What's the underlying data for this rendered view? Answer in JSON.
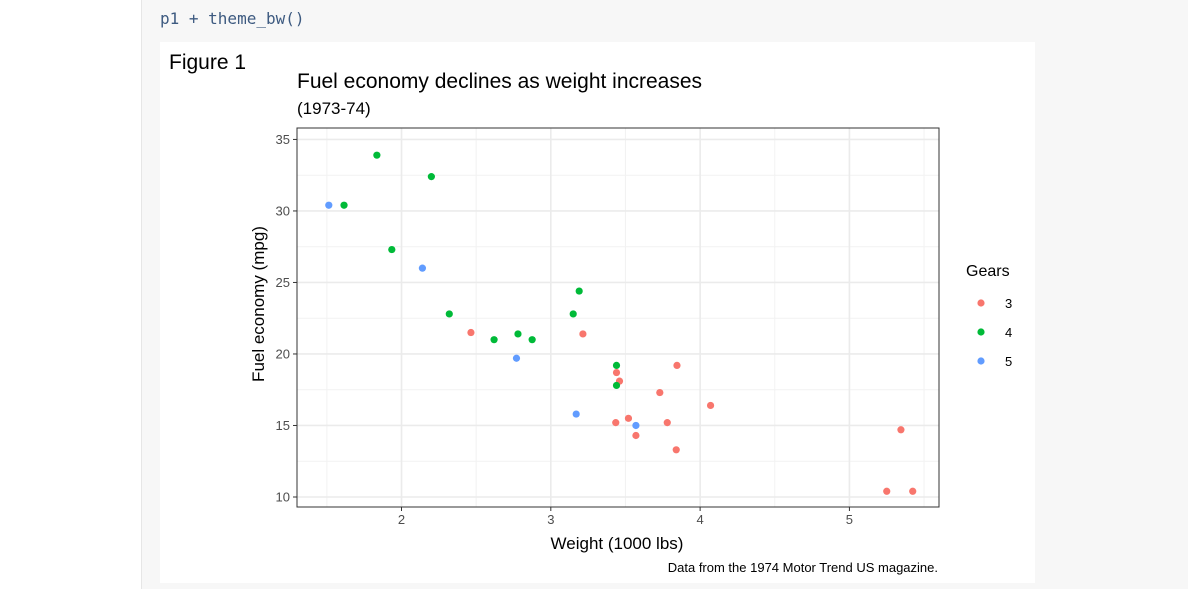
{
  "cell": {
    "code": "p1 + theme_bw()"
  },
  "figure": {
    "tag": "Figure 1"
  },
  "chart_data": {
    "type": "scatter",
    "title": "Fuel economy declines as weight increases",
    "subtitle": "(1973-74)",
    "caption": "Data from the 1974 Motor Trend US magazine.",
    "xlabel": "Weight (1000 lbs)",
    "ylabel": "Fuel economy (mpg)",
    "xlim": [
      1.3,
      5.6
    ],
    "ylim": [
      9.3,
      35.8
    ],
    "xticks": [
      2,
      3,
      4,
      5
    ],
    "yticks": [
      10,
      15,
      20,
      25,
      30,
      35
    ],
    "grid": true,
    "legend": {
      "title": "Gears",
      "placement": "right"
    },
    "series": [
      {
        "name": "3",
        "color": "#F8766D",
        "x": [
          3.215,
          3.44,
          3.46,
          3.57,
          4.07,
          3.73,
          3.78,
          5.25,
          5.424,
          5.345,
          2.465,
          3.52,
          3.435,
          3.84,
          3.845
        ],
        "y": [
          21.4,
          18.7,
          18.1,
          14.3,
          16.4,
          17.3,
          15.2,
          10.4,
          10.4,
          14.7,
          21.5,
          15.5,
          15.2,
          13.3,
          19.2
        ]
      },
      {
        "name": "4",
        "color": "#00BA38",
        "x": [
          2.62,
          2.875,
          2.32,
          3.19,
          3.15,
          3.44,
          3.44,
          2.2,
          1.615,
          1.835,
          1.935,
          2.78
        ],
        "y": [
          21.0,
          21.0,
          22.8,
          24.4,
          22.8,
          19.2,
          17.8,
          32.4,
          30.4,
          33.9,
          27.3,
          21.4
        ]
      },
      {
        "name": "5",
        "color": "#619CFF",
        "x": [
          2.14,
          1.513,
          3.17,
          2.77,
          3.57
        ],
        "y": [
          26.0,
          30.4,
          15.8,
          19.7,
          15.0
        ]
      }
    ]
  }
}
